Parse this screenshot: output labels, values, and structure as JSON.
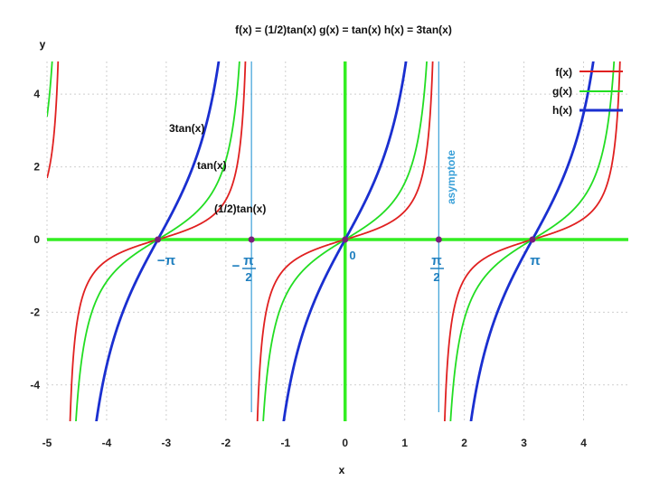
{
  "chart_data": {
    "type": "line",
    "title": "f(x) =  (1/2)tan(x)  g(x) = tan(x)   h(x) =  3tan(x)",
    "xlabel": "x",
    "ylabel": "y",
    "xlim": [
      -5,
      4.75
    ],
    "ylim": [
      -5,
      4.9
    ],
    "xticks": [
      -5,
      -4,
      -3,
      -2,
      -1,
      0,
      1,
      2,
      3,
      4
    ],
    "yticks": [
      -4,
      -2,
      0,
      2,
      4
    ],
    "grid": true,
    "legend_position": "top-right",
    "series": [
      {
        "name": "f(x)",
        "formula_factor": 0.5,
        "color": "#e02020"
      },
      {
        "name": "g(x)",
        "formula_factor": 1,
        "color": "#22dd22"
      },
      {
        "name": "h(x)",
        "formula_factor": 3,
        "color": "#1a2fd0"
      }
    ],
    "asymptotes": [
      -1.5708,
      1.5708
    ],
    "asymptote_color": "#3aa0d8",
    "axis_color": "#33ee22",
    "marked_points": [
      {
        "x": -3.1416,
        "y": 0
      },
      {
        "x": -1.5708,
        "y": 0
      },
      {
        "x": 0,
        "y": 0
      },
      {
        "x": 1.5708,
        "y": 0
      },
      {
        "x": 3.1416,
        "y": 0
      }
    ],
    "point_color": "#7a1f7a",
    "annotations": {
      "h_label": "3tan(x)",
      "g_label": "tan(x)",
      "f_label": "(1/2)tan(x)",
      "asymptote_label": "asymptote",
      "origin_label": "0",
      "neg_pi": "−π",
      "pi": "π",
      "half_pi_num": "π",
      "half_pi_den": "2",
      "neg_sign": "−"
    }
  }
}
